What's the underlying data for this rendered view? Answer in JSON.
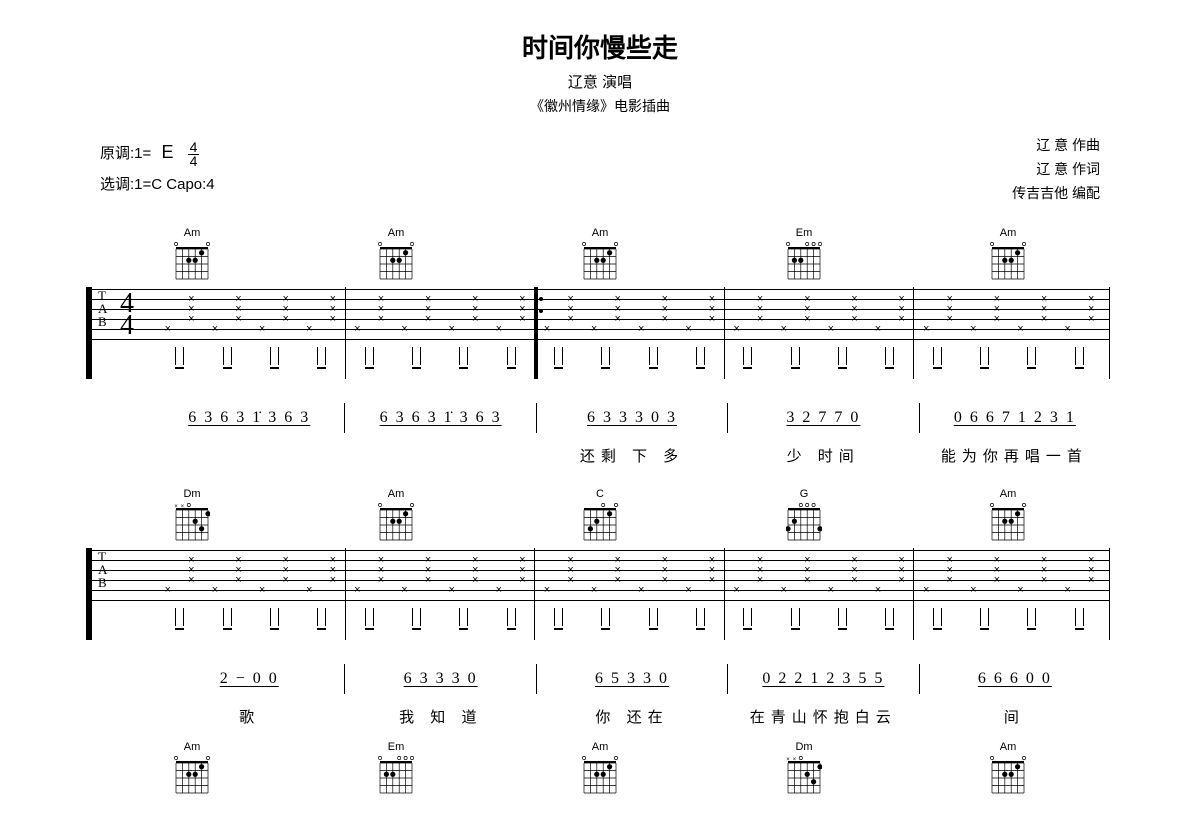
{
  "header": {
    "title": "时间你慢些走",
    "singer_line": "辽意 演唱",
    "source_line": "《徽州情缘》电影插曲"
  },
  "meta": {
    "orig_key_label": "原调:1=",
    "orig_key_value": "E",
    "time_sig_top": "4",
    "time_sig_bottom": "4",
    "play_key_line": "选调:1=C Capo:4",
    "composer": "辽 意 作曲",
    "lyricist": "辽 意 作词",
    "arranger": "传吉吉他 编配"
  },
  "tab_label": {
    "t": "T",
    "a": "A",
    "b": "B"
  },
  "chords": {
    "Am": {
      "name": "Am",
      "open": [
        0,
        5
      ],
      "mute": [],
      "dotsAt": [
        [
          1,
          1
        ],
        [
          2,
          3
        ],
        [
          2,
          2
        ]
      ]
    },
    "Em": {
      "name": "Em",
      "open": [
        0,
        1,
        2,
        5
      ],
      "mute": [],
      "dotsAt": [
        [
          2,
          4
        ],
        [
          2,
          3
        ]
      ]
    },
    "Dm": {
      "name": "Dm",
      "open": [
        3
      ],
      "mute": [
        5,
        4
      ],
      "dotsAt": [
        [
          1,
          0
        ],
        [
          2,
          2
        ],
        [
          3,
          1
        ]
      ]
    },
    "C": {
      "name": "C",
      "open": [
        0,
        2
      ],
      "mute": [],
      "dotsAt": [
        [
          1,
          1
        ],
        [
          2,
          3
        ],
        [
          3,
          4
        ]
      ]
    },
    "G": {
      "name": "G",
      "open": [
        1,
        2,
        3
      ],
      "mute": [],
      "dotsAt": [
        [
          2,
          4
        ],
        [
          3,
          5
        ],
        [
          3,
          0
        ]
      ]
    }
  },
  "system1": {
    "chords_order": [
      "Am",
      "Am",
      "Am",
      "Em",
      "Am"
    ],
    "numbered": [
      "6 3 6 3 1̇ 3 6 3",
      "6 3 6 3 1̇ 3 6 3",
      "6 3  3 3 0 3",
      "3  2 7 7 0",
      "0 6 6 7 1 2 3 1"
    ],
    "lyrics": [
      "",
      "",
      "还剩 下  多",
      "少 时间",
      "能为你再唱一首"
    ]
  },
  "system2": {
    "chords_order": [
      "Dm",
      "Am",
      "C",
      "G",
      "Am"
    ],
    "numbered": [
      "2  −  0 0",
      "6 3  3 3 0",
      "6  5 3 3 0",
      "0 2 2 1 2 3 5 5",
      "6 6 6  0 0"
    ],
    "lyrics": [
      "歌",
      "我 知 道",
      "你 还在",
      "在青山怀抱白云",
      "间"
    ]
  },
  "system3_chords": [
    "Am",
    "Em",
    "Am",
    "Dm",
    "Am"
  ],
  "style": {
    "page_bg": "#ffffff",
    "ink": "#000000",
    "chord_grid_w": 36,
    "chord_grid_h": 42,
    "title_fontsize": 26,
    "subtitle_fontsize": 15,
    "body_fontsize": 15,
    "string_count": 6,
    "strings_y": [
      2,
      12,
      22,
      32,
      42,
      52
    ]
  }
}
